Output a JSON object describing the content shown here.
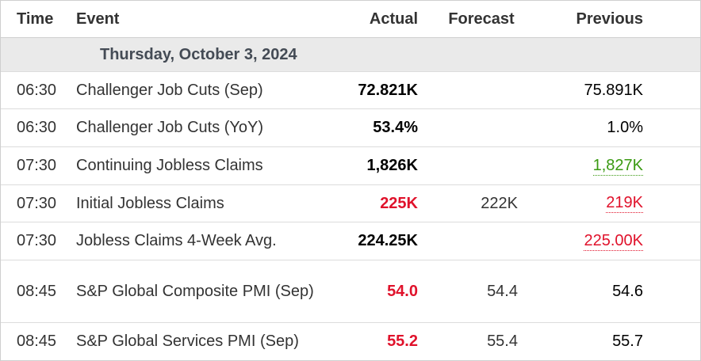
{
  "columns": {
    "time": "Time",
    "event": "Event",
    "actual": "Actual",
    "forecast": "Forecast",
    "previous": "Previous"
  },
  "date_header": "Thursday, October 3, 2024",
  "colors": {
    "negative": "#e0122b",
    "positive": "#3a9a12",
    "date_bg": "#eaeaea"
  },
  "rows": [
    {
      "time": "06:30",
      "event": "Challenger Job Cuts (Sep)",
      "actual": "72.821K",
      "actual_color": "neutral",
      "forecast": "",
      "previous": "75.891K",
      "previous_color": "neutral"
    },
    {
      "time": "06:30",
      "event": "Challenger Job Cuts (YoY)",
      "actual": "53.4%",
      "actual_color": "neutral",
      "forecast": "",
      "previous": "1.0%",
      "previous_color": "neutral"
    },
    {
      "time": "07:30",
      "event": "Continuing Jobless Claims",
      "actual": "1,826K",
      "actual_color": "neutral",
      "forecast": "",
      "previous": "1,827K",
      "previous_color": "positive-revised"
    },
    {
      "time": "07:30",
      "event": "Initial Jobless Claims",
      "actual": "225K",
      "actual_color": "negative",
      "forecast": "222K",
      "previous": "219K",
      "previous_color": "negative-revised"
    },
    {
      "time": "07:30",
      "event": "Jobless Claims 4-Week Avg.",
      "actual": "224.25K",
      "actual_color": "neutral",
      "forecast": "",
      "previous": "225.00K",
      "previous_color": "negative-revised"
    },
    {
      "time": "08:45",
      "event": "S&P Global Composite PMI (Sep)",
      "actual": "54.0",
      "actual_color": "negative",
      "forecast": "54.4",
      "previous": "54.6",
      "previous_color": "neutral"
    },
    {
      "time": "08:45",
      "event": "S&P Global Services PMI (Sep)",
      "actual": "55.2",
      "actual_color": "negative",
      "forecast": "55.4",
      "previous": "55.7",
      "previous_color": "neutral"
    }
  ]
}
